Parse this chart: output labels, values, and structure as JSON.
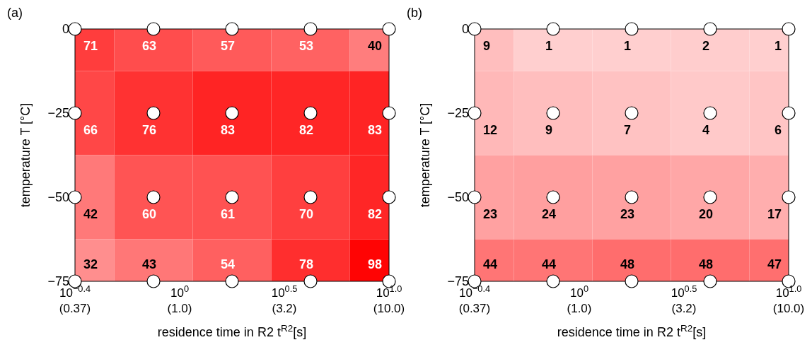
{
  "chart_data": [
    {
      "type": "heatmap",
      "title": "(a)",
      "xlabel": "residence time in R2 t$^{R2}$[s]",
      "ylabel": "temperature T [°C]",
      "annotations": [
        "10$^{−0.4}$\n(0.37)",
        "10$^{0}$\n(1.0)",
        "10$^{0.5}$\n(3.2)",
        "10$^{1.0}$\n(10.0)"
      ],
      "data_labels": true,
      "categories": [
        null,
        null,
        null,
        null,
        null
      ],
      "y_categories": [
        "0",
        "−25",
        "−50",
        "−75"
      ],
      "color": "#ff0000",
      "cells": [
        [
          71,
          63,
          57,
          53,
          40
        ],
        [
          66,
          76,
          83,
          82,
          83
        ],
        [
          42,
          60,
          61,
          70,
          82
        ],
        [
          32,
          43,
          54,
          78,
          98
        ]
      ]
    },
    {
      "type": "heatmap",
      "title": "(b)",
      "xlabel": "residence time in R2 t$^{R2}$[s]",
      "ylabel": "temperature T [°C]",
      "annotations": [
        "10$^{−0.4}$\n(0.37)",
        "10$^{0}$\n(1.0)",
        "10$^{0.5}$\n(3.2)",
        "10$^{1.0}$\n(10.0)"
      ],
      "data_labels": true,
      "categories": [
        null,
        null,
        null,
        null,
        null
      ],
      "y_categories": [
        "0",
        "−25",
        "−50",
        "−75"
      ],
      "color": "#ff0000",
      "cells": [
        [
          9,
          1,
          1,
          2,
          1
        ],
        [
          12,
          9,
          7,
          4,
          6
        ],
        [
          23,
          24,
          23,
          20,
          17
        ],
        [
          44,
          44,
          48,
          48,
          47
        ]
      ]
    }
  ]
}
